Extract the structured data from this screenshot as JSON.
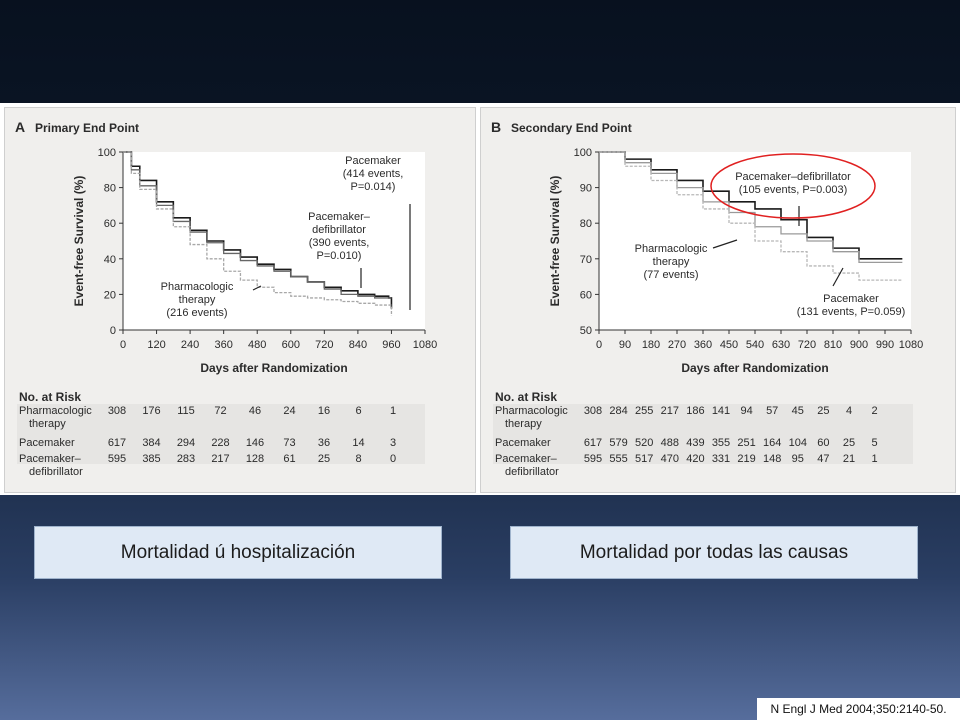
{
  "chart_data": [
    {
      "type": "line",
      "panel_letter": "A",
      "title": "Primary End Point",
      "xlabel": "Days after Randomization",
      "ylabel": "Event-free Survival (%)",
      "xlim": [
        0,
        1080
      ],
      "ylim": [
        0,
        100
      ],
      "xticks": [
        0,
        120,
        240,
        360,
        480,
        600,
        720,
        840,
        960,
        1080
      ],
      "yticks": [
        0,
        20,
        40,
        60,
        80,
        100
      ],
      "series": [
        {
          "name": "Pacemaker",
          "color": "#1a1a1a",
          "x": [
            0,
            30,
            60,
            120,
            180,
            240,
            300,
            360,
            420,
            480,
            540,
            600,
            660,
            720,
            780,
            840,
            900,
            950,
            960
          ],
          "y": [
            100,
            92,
            84,
            72,
            63,
            56,
            50,
            45,
            41,
            37,
            34,
            30,
            27,
            24,
            22,
            20,
            19,
            18,
            12
          ]
        },
        {
          "name": "Pacemaker–defibrillator",
          "color": "#666666",
          "x": [
            0,
            30,
            60,
            120,
            180,
            240,
            300,
            360,
            420,
            480,
            540,
            600,
            660,
            720,
            780,
            840,
            900,
            960
          ],
          "y": [
            100,
            90,
            81,
            70,
            61,
            55,
            49,
            43,
            39,
            36,
            33,
            30,
            27,
            23,
            20,
            19,
            18,
            18
          ]
        },
        {
          "name": "Pharmacologic therapy",
          "color": "#a8a8a8",
          "x": [
            0,
            30,
            60,
            120,
            180,
            240,
            300,
            360,
            420,
            480,
            540,
            600,
            660,
            720,
            780,
            840,
            900,
            960
          ],
          "y": [
            100,
            88,
            79,
            68,
            58,
            48,
            40,
            33,
            28,
            24,
            21,
            19,
            18,
            17,
            16,
            15,
            14,
            8
          ]
        }
      ],
      "annotations": [
        {
          "lines": [
            "Pacemaker",
            "(414 events,",
            "P=0.014)"
          ]
        },
        {
          "lines": [
            "Pacemaker–",
            "defibrillator",
            "(390 events,",
            "P=0.010)"
          ]
        },
        {
          "lines": [
            "Pharmacologic",
            "therapy",
            "(216 events)"
          ]
        }
      ],
      "risk_table": {
        "title": "No. at Risk",
        "rows": [
          {
            "label": [
              "Pharmacologic",
              "therapy"
            ],
            "values": [
              "308",
              "176",
              "115",
              "72",
              "46",
              "24",
              "16",
              "6",
              "1"
            ]
          },
          {
            "label": [
              "Pacemaker"
            ],
            "values": [
              "617",
              "384",
              "294",
              "228",
              "146",
              "73",
              "36",
              "14",
              "3"
            ]
          },
          {
            "label": [
              "Pacemaker–",
              "defibrillator"
            ],
            "values": [
              "595",
              "385",
              "283",
              "217",
              "128",
              "61",
              "25",
              "8",
              "0"
            ]
          }
        ]
      }
    },
    {
      "type": "line",
      "panel_letter": "B",
      "title": "Secondary End Point",
      "xlabel": "Days after Randomization",
      "ylabel": "Event-free Survival (%)",
      "xlim": [
        0,
        1080
      ],
      "ylim": [
        50,
        100
      ],
      "xticks": [
        0,
        90,
        180,
        270,
        360,
        450,
        540,
        630,
        720,
        810,
        900,
        990,
        1080
      ],
      "yticks": [
        50,
        60,
        70,
        80,
        90,
        100
      ],
      "series": [
        {
          "name": "Pacemaker–defibrillator",
          "color": "#1a1a1a",
          "x": [
            0,
            90,
            180,
            270,
            360,
            450,
            540,
            630,
            720,
            810,
            900,
            990,
            1050
          ],
          "y": [
            100,
            98,
            95,
            92,
            89,
            86,
            84,
            81,
            76,
            73,
            70,
            70,
            70
          ]
        },
        {
          "name": "Pacemaker",
          "color": "#9a9a9a",
          "x": [
            0,
            90,
            180,
            270,
            360,
            450,
            540,
            630,
            720,
            810,
            900,
            990,
            1050
          ],
          "y": [
            100,
            97,
            94,
            90,
            86,
            83,
            79,
            77,
            75,
            72,
            69,
            69,
            69
          ]
        },
        {
          "name": "Pharmacologic therapy",
          "color": "#b8b8b8",
          "x": [
            0,
            90,
            180,
            270,
            360,
            450,
            540,
            630,
            720,
            810,
            900,
            990,
            1050
          ],
          "y": [
            100,
            96,
            92,
            88,
            84,
            80,
            75,
            72,
            68,
            66,
            64,
            64,
            64
          ]
        }
      ],
      "annotations": [
        {
          "lines": [
            "Pacemaker–defibrillator",
            "(105 events, P=0.003)"
          ]
        },
        {
          "lines": [
            "Pharmacologic",
            "therapy",
            "(77 events)"
          ]
        },
        {
          "lines": [
            "Pacemaker",
            "(131 events, P=0.059)"
          ]
        }
      ],
      "risk_table": {
        "title": "No. at Risk",
        "rows": [
          {
            "label": [
              "Pharmacologic",
              "therapy"
            ],
            "values": [
              "308",
              "284",
              "255",
              "217",
              "186",
              "141",
              "94",
              "57",
              "45",
              "25",
              "4",
              "2"
            ]
          },
          {
            "label": [
              "Pacemaker"
            ],
            "values": [
              "617",
              "579",
              "520",
              "488",
              "439",
              "355",
              "251",
              "164",
              "104",
              "60",
              "25",
              "5"
            ]
          },
          {
            "label": [
              "Pacemaker–",
              "defibrillator"
            ],
            "values": [
              "595",
              "555",
              "517",
              "470",
              "420",
              "331",
              "219",
              "148",
              "95",
              "47",
              "21",
              "1"
            ]
          }
        ]
      }
    }
  ],
  "captions": {
    "left": "Mortalidad ú hospitalización",
    "right": "Mortalidad por todas las causas"
  },
  "citation": "N Engl J Med 2004;350:2140-50.",
  "colors": {
    "highlight_circle": "#e02020",
    "caption_bg": "#dfe9f5"
  }
}
